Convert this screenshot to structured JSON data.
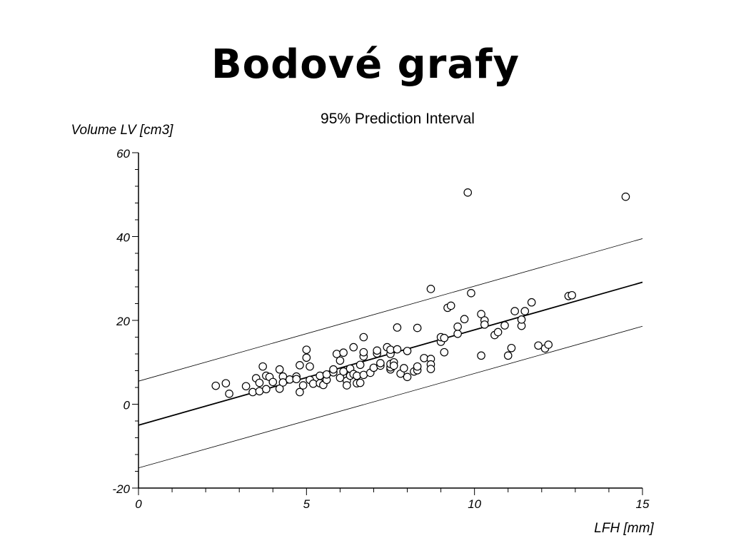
{
  "slide": {
    "title": "Bodové grafy"
  },
  "chart_data": {
    "type": "scatter",
    "title": "95% Prediction Interval",
    "xlabel": "LFH [mm]",
    "ylabel": "Volume LV [cm3]",
    "xlim": [
      0,
      15
    ],
    "ylim": [
      -20,
      60
    ],
    "xticks": [
      "0",
      "5",
      "10",
      "15"
    ],
    "yticks": [
      "-20",
      "0",
      "20",
      "40",
      "60"
    ],
    "grid": false,
    "regression": {
      "x": [
        0,
        15
      ],
      "y": [
        -5.0,
        29.1
      ]
    },
    "prediction_upper": {
      "x": [
        0,
        15
      ],
      "y": [
        5.5,
        39.5
      ]
    },
    "prediction_lower": {
      "x": [
        0,
        15
      ],
      "y": [
        -15.2,
        18.6
      ]
    },
    "points": [
      [
        2.3,
        4.4
      ],
      [
        2.6,
        5.0
      ],
      [
        2.7,
        2.5
      ],
      [
        3.2,
        4.3
      ],
      [
        3.4,
        2.9
      ],
      [
        3.5,
        6.2
      ],
      [
        3.6,
        3.1
      ],
      [
        3.6,
        5.1
      ],
      [
        3.7,
        9.0
      ],
      [
        3.8,
        6.8
      ],
      [
        3.8,
        3.6
      ],
      [
        3.9,
        6.5
      ],
      [
        4.0,
        5.3
      ],
      [
        4.2,
        8.3
      ],
      [
        4.2,
        3.7
      ],
      [
        4.3,
        6.6
      ],
      [
        4.3,
        5.2
      ],
      [
        4.5,
        5.9
      ],
      [
        4.7,
        6.6
      ],
      [
        4.7,
        6.0
      ],
      [
        4.8,
        2.9
      ],
      [
        4.8,
        9.3
      ],
      [
        4.9,
        4.5
      ],
      [
        5.0,
        13.0
      ],
      [
        5.0,
        11.1
      ],
      [
        5.1,
        9.0
      ],
      [
        5.1,
        5.8
      ],
      [
        5.2,
        4.9
      ],
      [
        5.4,
        6.8
      ],
      [
        5.4,
        5.0
      ],
      [
        5.5,
        4.6
      ],
      [
        5.6,
        5.8
      ],
      [
        5.6,
        7.1
      ],
      [
        5.8,
        7.6
      ],
      [
        5.8,
        8.3
      ],
      [
        5.9,
        12.0
      ],
      [
        6.0,
        10.4
      ],
      [
        6.0,
        6.3
      ],
      [
        6.1,
        12.3
      ],
      [
        6.1,
        7.8
      ],
      [
        6.2,
        5.6
      ],
      [
        6.2,
        4.5
      ],
      [
        6.3,
        6.8
      ],
      [
        6.3,
        8.5
      ],
      [
        6.4,
        13.6
      ],
      [
        6.4,
        7.2
      ],
      [
        6.5,
        5.0
      ],
      [
        6.5,
        6.8
      ],
      [
        6.6,
        5.1
      ],
      [
        6.6,
        9.4
      ],
      [
        6.7,
        11.4
      ],
      [
        6.7,
        12.4
      ],
      [
        6.7,
        7.0
      ],
      [
        6.7,
        16.0
      ],
      [
        6.9,
        7.5
      ],
      [
        7.0,
        8.7
      ],
      [
        7.1,
        12.1
      ],
      [
        7.1,
        12.8
      ],
      [
        7.2,
        9.2
      ],
      [
        7.2,
        9.8
      ],
      [
        7.4,
        13.6
      ],
      [
        7.5,
        12.0
      ],
      [
        7.5,
        8.3
      ],
      [
        7.5,
        8.8
      ],
      [
        7.5,
        9.6
      ],
      [
        7.5,
        13.0
      ],
      [
        7.6,
        10.0
      ],
      [
        7.6,
        9.2
      ],
      [
        7.7,
        13.1
      ],
      [
        7.7,
        18.3
      ],
      [
        7.8,
        7.3
      ],
      [
        7.9,
        8.6
      ],
      [
        8.0,
        6.5
      ],
      [
        8.0,
        12.7
      ],
      [
        8.2,
        7.8
      ],
      [
        8.3,
        8.1
      ],
      [
        8.3,
        9.0
      ],
      [
        8.3,
        18.2
      ],
      [
        8.5,
        11.0
      ],
      [
        8.7,
        27.5
      ],
      [
        8.7,
        10.8
      ],
      [
        8.7,
        9.5
      ],
      [
        8.7,
        8.4
      ],
      [
        9.0,
        14.9
      ],
      [
        9.0,
        16.0
      ],
      [
        9.1,
        12.4
      ],
      [
        9.1,
        15.8
      ],
      [
        9.2,
        23.0
      ],
      [
        9.3,
        23.5
      ],
      [
        9.5,
        16.8
      ],
      [
        9.5,
        18.5
      ],
      [
        9.7,
        20.3
      ],
      [
        9.8,
        50.5
      ],
      [
        9.9,
        26.5
      ],
      [
        10.2,
        11.6
      ],
      [
        10.2,
        21.5
      ],
      [
        10.3,
        20.0
      ],
      [
        10.3,
        19.0
      ],
      [
        10.6,
        16.5
      ],
      [
        10.7,
        17.2
      ],
      [
        10.9,
        18.8
      ],
      [
        11.0,
        11.6
      ],
      [
        11.1,
        13.4
      ],
      [
        11.2,
        22.2
      ],
      [
        11.4,
        18.7
      ],
      [
        11.4,
        20.2
      ],
      [
        11.5,
        22.2
      ],
      [
        11.7,
        24.3
      ],
      [
        11.9,
        14.0
      ],
      [
        12.1,
        13.3
      ],
      [
        12.2,
        14.2
      ],
      [
        12.8,
        25.8
      ],
      [
        12.9,
        26.0
      ],
      [
        14.5,
        49.5
      ]
    ]
  }
}
